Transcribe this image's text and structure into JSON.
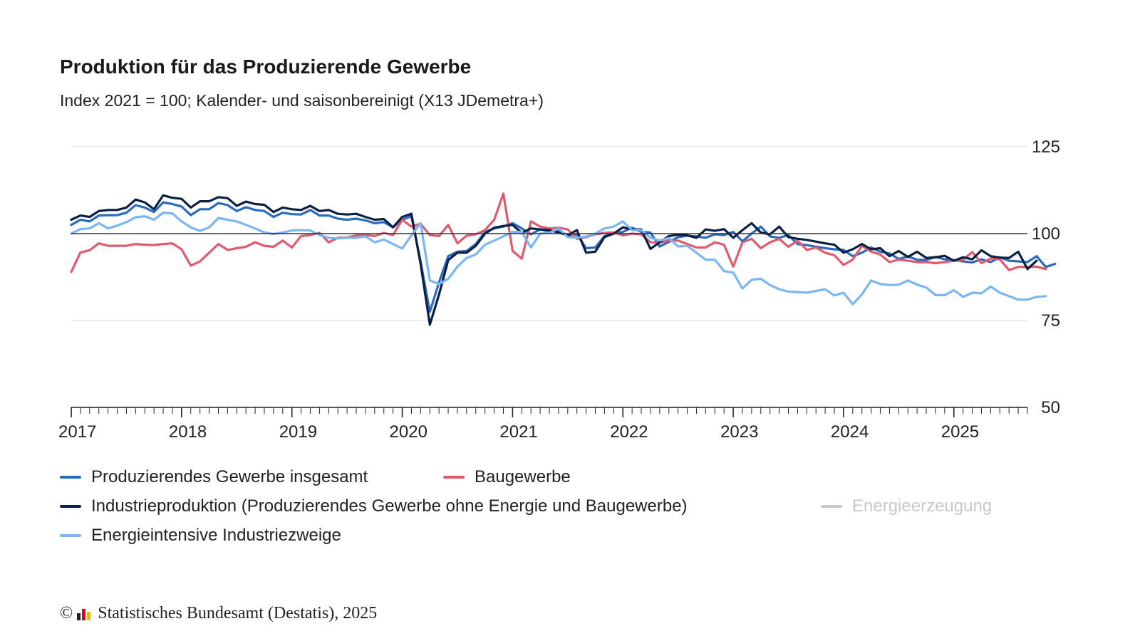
{
  "header": {
    "title": "Produktion für das Produzierende Gewerbe",
    "subtitle": "Index 2021 = 100; Kalender- und saisonbereinigt (X13 JDemetra+)"
  },
  "legend": [
    {
      "label": "Produzierendes Gewerbe insgesamt",
      "color": "#2a6bbd",
      "active": true
    },
    {
      "label": "Baugewerbe",
      "color": "#e05a6e",
      "active": true
    },
    {
      "label": "Industrieproduktion (Produzierendes Gewerbe ohne Energie und Baugewerbe)",
      "color": "#0b1f45",
      "active": true
    },
    {
      "label": "Energieerzeugung",
      "color": "#c8c8c8",
      "active": false
    },
    {
      "label": "Energieintensive Industriezweige",
      "color": "#7ab5f5",
      "active": true
    }
  ],
  "footer": {
    "copyright_symbol": "©",
    "text": "Statistisches Bundesamt (Destatis), 2025"
  },
  "chart_data": {
    "type": "line",
    "x_start": "2017-01",
    "x_end": "2025-09",
    "x_ticks": [
      "2017",
      "2018",
      "2019",
      "2020",
      "2021",
      "2022",
      "2023",
      "2024",
      "2025"
    ],
    "y_ticks": [
      "125",
      "100",
      "75",
      "50"
    ],
    "ylim": [
      50,
      125
    ],
    "reference_line": 100,
    "grid": true,
    "y_axis_position": "right",
    "legend_position": "bottom",
    "series": [
      {
        "name": "Produzierendes Gewerbe insgesamt",
        "color": "#2a6bbd",
        "values": [
          102.5,
          104,
          103.5,
          105.2,
          105.3,
          105.3,
          106,
          108.2,
          107.5,
          106.2,
          109,
          108.5,
          107.8,
          105.3,
          107,
          107,
          108.8,
          108.2,
          106.5,
          107.6,
          106.8,
          106.5,
          104.8,
          106,
          105.6,
          105.5,
          106.8,
          105.2,
          105.2,
          104.3,
          104,
          104.3,
          103.8,
          103,
          103.3,
          101.8,
          104,
          105,
          92,
          77.5,
          86,
          93.5,
          94.8,
          95,
          97,
          100.5,
          101.5,
          102,
          103,
          101.5,
          99.8,
          101.2,
          100.6,
          100.9,
          99.5,
          99.8,
          95.8,
          96,
          99.3,
          100,
          100.5,
          101.7,
          100.5,
          100.3,
          96.3,
          97.6,
          99,
          99.4,
          99.2,
          98.8,
          99.8,
          99.6,
          100.5,
          97.8,
          100,
          102,
          99.2,
          98.8,
          99.6,
          97,
          96.7,
          96.2,
          95.8,
          95.5,
          95.3,
          93.5,
          94.5,
          96,
          94.8,
          94.3,
          92.7,
          93.4,
          92.5,
          92.4,
          93.3,
          92.6,
          92.4,
          92,
          91.7,
          92.6,
          91.8,
          93.2,
          92.2,
          92,
          91.8,
          93.5,
          90.4,
          91.3
        ]
      },
      {
        "name": "Baugewerbe",
        "color": "#e05a6e",
        "values": [
          89,
          94.6,
          95.2,
          97.2,
          96.5,
          96.5,
          96.5,
          97,
          96.8,
          96.7,
          97,
          97.2,
          95.5,
          90.8,
          92,
          94.5,
          97,
          95.3,
          95.8,
          96.2,
          97.5,
          96.5,
          96.2,
          98,
          96,
          99.3,
          99.6,
          100.2,
          97.5,
          98.8,
          98.9,
          99.5,
          99.6,
          99.3,
          100.2,
          99.6,
          104,
          102,
          102.8,
          99.6,
          99.3,
          102.5,
          97.2,
          99.4,
          99.8,
          101,
          104,
          111.5,
          95,
          92.8,
          103.5,
          102,
          101.5,
          101.7,
          101.2,
          98.5,
          99,
          99.8,
          100.2,
          100.3,
          99.5,
          100,
          99.8,
          97.5,
          97.4,
          98,
          98,
          97,
          96,
          96,
          97.5,
          96.8,
          90.5,
          97.5,
          98.5,
          95.8,
          97.5,
          98.5,
          96.2,
          98,
          95.3,
          96,
          94.5,
          93.8,
          91,
          92.5,
          96.5,
          94.8,
          94,
          91.8,
          92.5,
          92.2,
          91.8,
          91.8,
          91.5,
          91.8,
          92.2,
          92.5,
          94.7,
          91.5,
          92.8,
          92.6,
          89.5,
          90.4,
          90.4,
          90.5,
          89.8
        ]
      },
      {
        "name": "Industrieproduktion (Produzierendes Gewerbe ohne Energie und Baugewerbe)",
        "color": "#0b1f45",
        "values": [
          104,
          105.2,
          104.8,
          106.5,
          106.8,
          106.8,
          107.5,
          109.8,
          109,
          107,
          111,
          110.3,
          110,
          107.5,
          109.3,
          109.3,
          110.5,
          110.2,
          108,
          109.2,
          108.5,
          108.3,
          106.2,
          107.5,
          107,
          106.8,
          108,
          106.5,
          106.8,
          105.7,
          105.5,
          105.7,
          104.8,
          104,
          104.2,
          101.8,
          104.8,
          105.7,
          91.3,
          73.8,
          82.5,
          92.4,
          94.5,
          94.5,
          96.5,
          100,
          101.7,
          102.2,
          102.5,
          100.2,
          101.5,
          101.2,
          101,
          100.3,
          99.5,
          101,
          94.5,
          94.8,
          99,
          100,
          101.8,
          101.2,
          101.2,
          95.6,
          97.5,
          99.3,
          99.7,
          99.5,
          98.8,
          101.2,
          100.8,
          101.3,
          98.8,
          101,
          103,
          100.3,
          99.8,
          102,
          99,
          98.5,
          98.2,
          97.7,
          97.2,
          96.8,
          94.5,
          95.5,
          97,
          95.5,
          95.8,
          93.5,
          95,
          93.3,
          94.8,
          93,
          93.2,
          93.6,
          92.2,
          93.2,
          92.6,
          95.2,
          93.5,
          93.1,
          93,
          94.8,
          89.8,
          92.2
        ]
      },
      {
        "name": "Energieintensive Industriezweige",
        "color": "#7ab5f5",
        "values": [
          100,
          101.3,
          101.5,
          103,
          101.5,
          102.3,
          103.3,
          104.7,
          105,
          104,
          106,
          105.8,
          103.5,
          101.8,
          100.8,
          101.8,
          104.5,
          104,
          103.5,
          102.5,
          101.5,
          100.3,
          99.9,
          100.3,
          100.9,
          101,
          100.9,
          99.6,
          98.8,
          98.6,
          98.8,
          98.8,
          99.2,
          97.5,
          98.3,
          97,
          95.7,
          99.5,
          103,
          86.5,
          85.5,
          87,
          90.5,
          93,
          94,
          96.8,
          98,
          99.2,
          100.5,
          100.5,
          96,
          100,
          100.2,
          101.5,
          99,
          98.8,
          99.2,
          100,
          101.5,
          102,
          103.5,
          101,
          101,
          98.8,
          98,
          98.7,
          96.3,
          96.5,
          94.5,
          92.5,
          92.5,
          89.2,
          88.8,
          84.2,
          86.7,
          87,
          85.2,
          84,
          83.3,
          83.2,
          83,
          83.5,
          84,
          82.2,
          83,
          79.7,
          82.5,
          86.5,
          85.5,
          85.2,
          85.3,
          86.5,
          85.3,
          84.5,
          82.3,
          82.3,
          83.7,
          81.8,
          83,
          82.8,
          84.8,
          83,
          82,
          81,
          81,
          81.8,
          82
        ]
      }
    ]
  }
}
